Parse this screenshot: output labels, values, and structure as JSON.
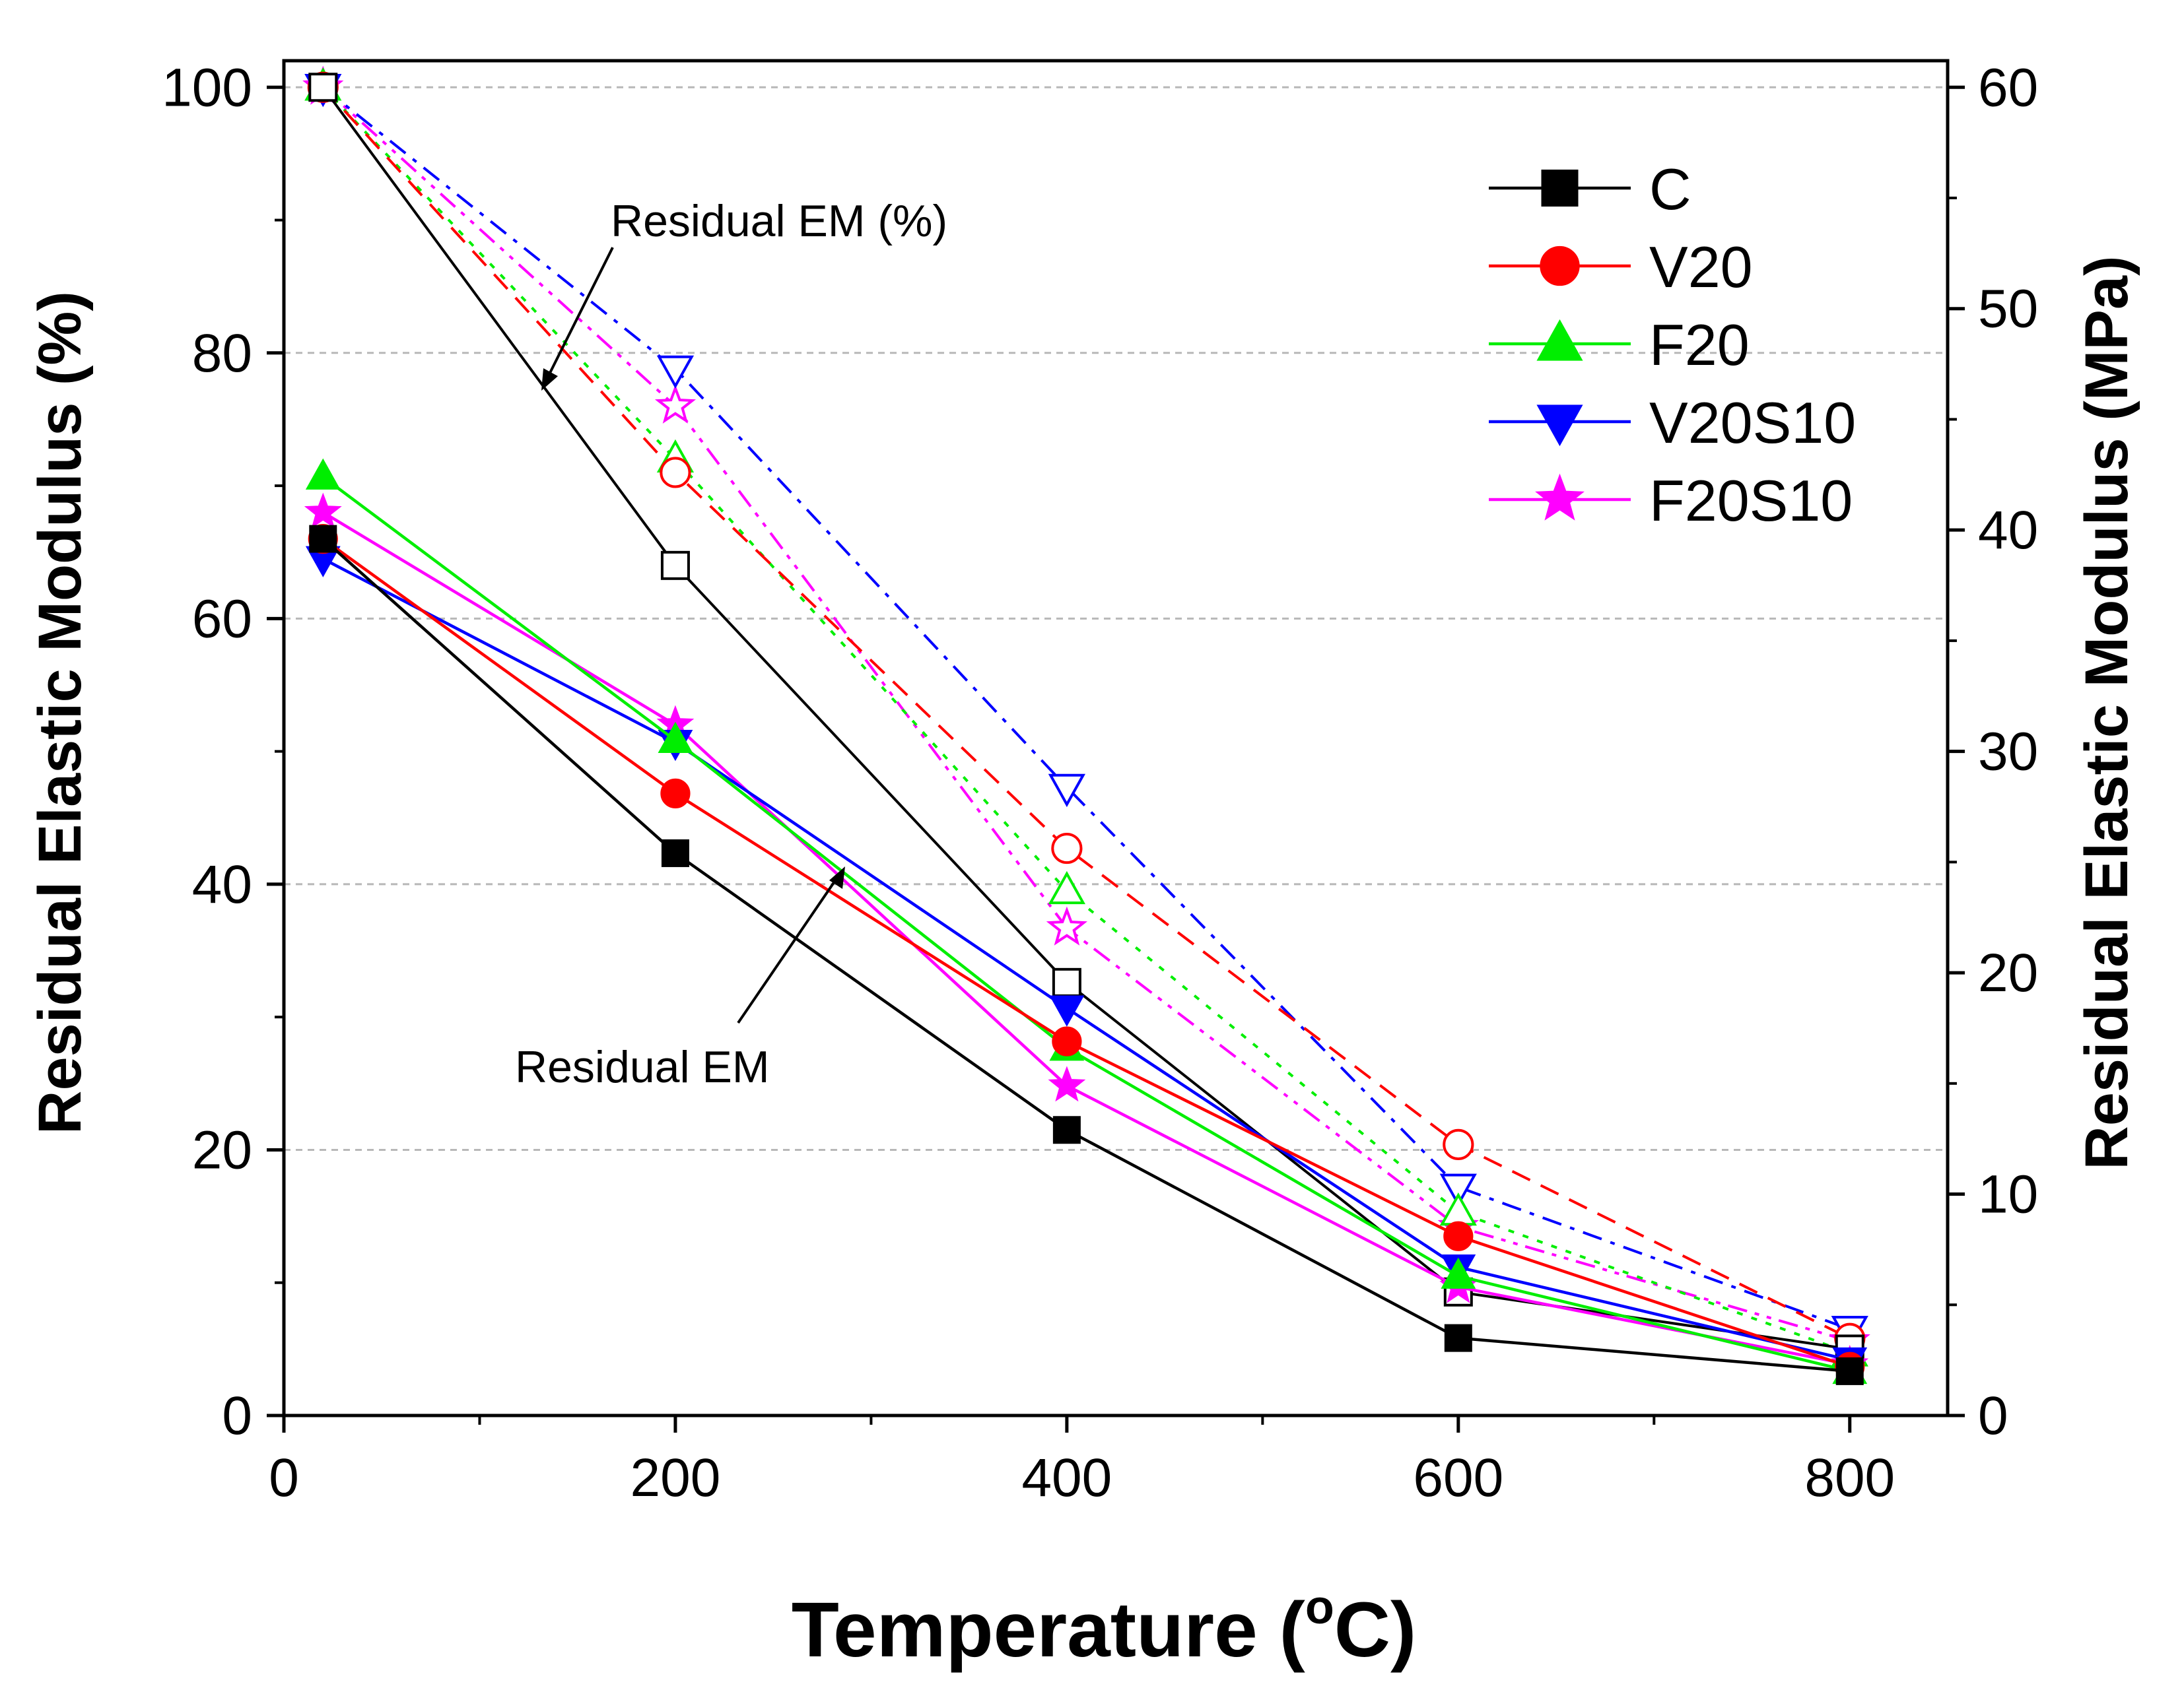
{
  "chart_data": {
    "type": "line",
    "x_axis": {
      "label_main": "Temperature (",
      "label_sup": "o",
      "label_unit": "C)",
      "ticks": [
        0,
        200,
        400,
        600,
        800
      ],
      "range": [
        0,
        850
      ]
    },
    "y_left": {
      "label": "Residual Elastic Modulus (%)",
      "ticks": [
        0,
        20,
        40,
        60,
        80,
        100
      ],
      "range": [
        0,
        102
      ]
    },
    "y_right": {
      "label": "Residual Elastic Modulus (MPa)",
      "ticks": [
        0,
        10,
        20,
        30,
        40,
        50,
        60
      ],
      "range": [
        0,
        61.2
      ]
    },
    "gridlines": [
      20,
      40,
      60,
      80,
      100
    ],
    "x": [
      20,
      200,
      400,
      600,
      800
    ],
    "series": [
      {
        "name": "C",
        "color": "#000000",
        "marker": "square",
        "residual_em_mpa": [
          39.6,
          25.4,
          12.9,
          3.5,
          2.0
        ],
        "residual_em_pct": [
          100,
          64,
          32.6,
          9.3,
          5.0
        ],
        "pct_dash": "solid"
      },
      {
        "name": "V20",
        "color": "#ff0000",
        "marker": "circle",
        "residual_em_mpa": [
          39.6,
          28.1,
          16.9,
          8.1,
          2.2
        ],
        "residual_em_pct": [
          100,
          71,
          42.7,
          20.4,
          5.8
        ],
        "pct_dash": "dash"
      },
      {
        "name": "F20",
        "color": "#00ee00",
        "marker": "triangle-up",
        "residual_em_mpa": [
          42.4,
          30.5,
          16.6,
          6.3,
          2.0
        ],
        "residual_em_pct": [
          100,
          72,
          39.5,
          15.3,
          4.7
        ],
        "pct_dash": "dot"
      },
      {
        "name": "V20S10",
        "color": "#0000ff",
        "marker": "triangle-down",
        "residual_em_mpa": [
          38.7,
          30.4,
          18.4,
          6.7,
          2.5
        ],
        "residual_em_pct": [
          100,
          78.8,
          47.3,
          17.2,
          6.5
        ],
        "pct_dash": "dashdot"
      },
      {
        "name": "F20S10",
        "color": "#ff00ff",
        "marker": "star",
        "residual_em_mpa": [
          40.8,
          31.2,
          14.9,
          5.8,
          2.3
        ],
        "residual_em_pct": [
          100,
          76,
          36.7,
          14.2,
          5.6
        ],
        "pct_dash": "dashdotdot"
      }
    ],
    "annotations": [
      {
        "text": "Residual EM (%)",
        "target": "percent curves"
      },
      {
        "text": "Residual EM",
        "target": "modulus curves"
      }
    ],
    "legend_position": "top-right"
  }
}
